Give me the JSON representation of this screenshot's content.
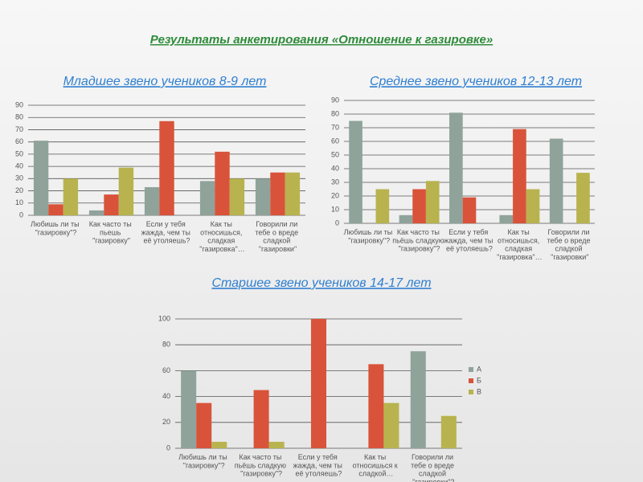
{
  "title": "Результаты анкетирования «Отношение к газировке»",
  "chart_data": [
    {
      "type": "bar",
      "title": "Младшее звено учеников 8-9 лет",
      "categories": [
        "Любишь ли ты \"газировку\"?",
        "Как часто ты пьешь \"газировку\"",
        "Если у тебя жажда, чем ты её утоляешь?",
        "Как ты относишься, сладкая \"газировка\"…",
        "Говорили ли тебе о вреде сладкой \"газировки\""
      ],
      "series": [
        {
          "color": "#8fa39a",
          "values": [
            61,
            4,
            23,
            28,
            30
          ]
        },
        {
          "color": "#d9533a",
          "values": [
            9,
            17,
            77,
            52,
            35
          ]
        },
        {
          "color": "#b8b34e",
          "values": [
            30,
            39,
            0,
            30,
            35
          ]
        }
      ],
      "ylim": [
        0,
        90
      ],
      "yticks": [
        0,
        10,
        20,
        30,
        40,
        50,
        60,
        70,
        80,
        90
      ],
      "grid": true
    },
    {
      "type": "bar",
      "title": "Среднее звено учеников 12-13 лет",
      "categories": [
        "Любишь ли ты \"газировку\"?",
        "Как часто ты пьёшь сладкую \"газировку\"?",
        "Если у тебя жажда, чем ты её утоляешь?",
        "Как ты относишься, сладкая \"газировка\"…",
        "Говорили ли тебе о вреде сладкой \"газировки\""
      ],
      "series": [
        {
          "color": "#8fa39a",
          "values": [
            75,
            6,
            81,
            6,
            62
          ]
        },
        {
          "color": "#d9533a",
          "values": [
            0,
            25,
            19,
            69,
            0
          ]
        },
        {
          "color": "#b8b34e",
          "values": [
            25,
            31,
            0,
            25,
            37
          ]
        }
      ],
      "ylim": [
        0,
        90
      ],
      "yticks": [
        0,
        10,
        20,
        30,
        40,
        50,
        60,
        70,
        80,
        90
      ],
      "grid": true
    },
    {
      "type": "bar",
      "title": "Старшее звено учеников 14-17 лет",
      "categories": [
        "Любишь ли ты \"газировку\"?",
        "Как часто ты пьёшь сладкую \"газировку\"?",
        "Если у тебя жажда, чем ты её утоляешь?",
        "Как ты относишься к сладкой…",
        "Говорили ли тебе о вреде сладкой \"газировки\"?"
      ],
      "series": [
        {
          "name": "А",
          "color": "#8fa39a",
          "values": [
            60,
            0,
            0,
            0,
            75
          ]
        },
        {
          "name": "Б",
          "color": "#d9533a",
          "values": [
            35,
            45,
            100,
            65,
            0
          ]
        },
        {
          "name": "В",
          "color": "#b8b34e",
          "values": [
            5,
            5,
            0,
            35,
            25
          ]
        }
      ],
      "ylim": [
        0,
        100
      ],
      "yticks": [
        0,
        20,
        40,
        60,
        80,
        100
      ],
      "grid": true,
      "legend": "right"
    }
  ]
}
